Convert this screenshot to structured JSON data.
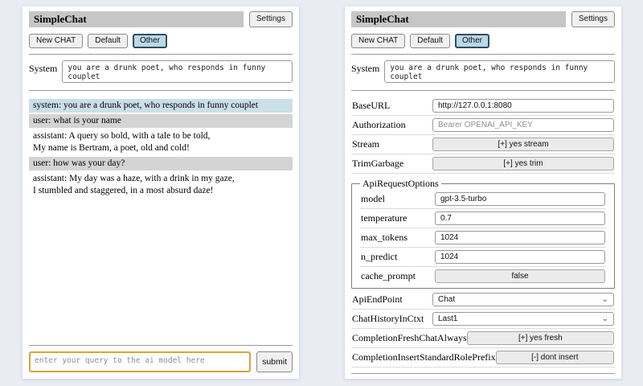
{
  "colors": {
    "page_bg": "#eaecf4",
    "panel_bg": "#ffffff",
    "titlebar_bg": "#c6c6c6",
    "active_session_bg": "#b9d8e8",
    "active_session_border": "#2e4d63",
    "system_msg_bg": "#cbdfe9",
    "user_msg_bg": "#d4d4d4",
    "query_focus_border": "#d9a43e"
  },
  "icons": {
    "chevron_down": "⌄"
  },
  "header": {
    "title": "SimpleChat",
    "settings_button": "Settings",
    "sessions": [
      "New CHAT",
      "Default",
      "Other"
    ],
    "active_session": "Other"
  },
  "system": {
    "label": "System",
    "value": "you are a drunk poet, who responds in funny couplet"
  },
  "query": {
    "placeholder": "enter your query to the ai model here",
    "submit": "submit"
  },
  "chat": {
    "messages": [
      {
        "role": "system",
        "text": "system: you are a drunk poet, who responds in funny couplet"
      },
      {
        "role": "user",
        "text": "user: what is your name"
      },
      {
        "role": "assistant",
        "text": "assistant: A query so bold, with a tale to be told,\nMy name is Bertram, a poet, old and cold!"
      },
      {
        "role": "user",
        "text": "user: how was your day?"
      },
      {
        "role": "assistant",
        "text": "assistant: My day was a haze, with a drink in my gaze,\nI stumbled and staggered, in a most absurd daze!"
      }
    ]
  },
  "settings": {
    "top_rows": [
      {
        "label": "BaseURL",
        "value": "http://127.0.0.1:8080"
      },
      {
        "label": "Authorization",
        "placeholder": "Bearer OPENAI_API_KEY"
      },
      {
        "label": "Stream",
        "button": "[+] yes stream"
      },
      {
        "label": "TrimGarbage",
        "button": "[+] yes trim"
      }
    ],
    "fieldset": {
      "legend": "ApiRequestOptions",
      "rows": [
        {
          "label": "model",
          "value": "gpt-3.5-turbo"
        },
        {
          "label": "temperature",
          "value": "0.7"
        },
        {
          "label": "max_tokens",
          "value": "1024"
        },
        {
          "label": "n_predict",
          "value": "1024"
        },
        {
          "label": "cache_prompt",
          "button": "false"
        }
      ]
    },
    "bottom_rows": [
      {
        "label": "ApiEndPoint",
        "select": "Chat"
      },
      {
        "label": "ChatHistoryInCtxt",
        "select": "Last1"
      },
      {
        "label": "CompletionFreshChatAlways",
        "button": "[+] yes fresh"
      },
      {
        "label": "CompletionInsertStandardRolePrefix",
        "button": "[-] dont insert"
      }
    ]
  }
}
